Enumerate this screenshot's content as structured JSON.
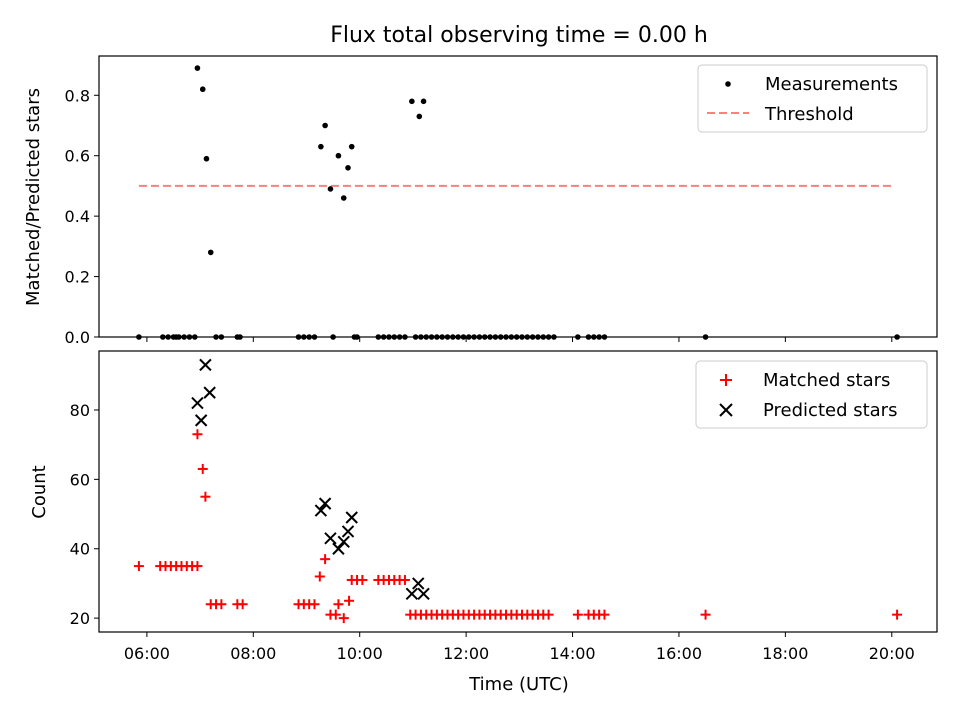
{
  "title": "Flux total observing time = 0.00 h",
  "colors": {
    "measurements": "#000000",
    "threshold": "#ff7f7f",
    "matched": "#ff0000",
    "predicted": "#000000"
  },
  "chart_data": [
    {
      "type": "scatter",
      "title": "Flux total observing time = 0.00 h",
      "xlabel": "",
      "ylabel": "Matched/Predicted stars",
      "xlim": [
        5.1,
        20.85
      ],
      "ylim": [
        0,
        0.93
      ],
      "yticks": [
        "0.0",
        "0.2",
        "0.4",
        "0.6",
        "0.8"
      ],
      "legend": {
        "position": "top-right",
        "entries": [
          "Measurements",
          "Threshold"
        ]
      },
      "threshold": {
        "name": "Threshold",
        "x": [
          5.85,
          20.05
        ],
        "y": 0.5
      },
      "series": [
        {
          "name": "Measurements",
          "points": [
            [
              5.85,
              0
            ],
            [
              6.3,
              0
            ],
            [
              6.4,
              0
            ],
            [
              6.5,
              0
            ],
            [
              6.55,
              0
            ],
            [
              6.6,
              0
            ],
            [
              6.7,
              0
            ],
            [
              6.8,
              0
            ],
            [
              6.9,
              0
            ],
            [
              7.3,
              0
            ],
            [
              7.4,
              0
            ],
            [
              7.7,
              0
            ],
            [
              7.75,
              0
            ],
            [
              8.85,
              0
            ],
            [
              8.95,
              0
            ],
            [
              9.05,
              0
            ],
            [
              9.15,
              0
            ],
            [
              9.5,
              0
            ],
            [
              9.9,
              0
            ],
            [
              9.95,
              0
            ],
            [
              10.35,
              0
            ],
            [
              10.45,
              0
            ],
            [
              10.55,
              0
            ],
            [
              10.65,
              0
            ],
            [
              10.75,
              0
            ],
            [
              10.85,
              0
            ],
            [
              11.05,
              0
            ],
            [
              11.15,
              0
            ],
            [
              11.25,
              0
            ],
            [
              11.35,
              0
            ],
            [
              11.45,
              0
            ],
            [
              11.55,
              0
            ],
            [
              11.65,
              0
            ],
            [
              11.75,
              0
            ],
            [
              11.85,
              0
            ],
            [
              11.95,
              0
            ],
            [
              12.05,
              0
            ],
            [
              12.15,
              0
            ],
            [
              12.25,
              0
            ],
            [
              12.35,
              0
            ],
            [
              12.45,
              0
            ],
            [
              12.55,
              0
            ],
            [
              12.65,
              0
            ],
            [
              12.75,
              0
            ],
            [
              12.85,
              0
            ],
            [
              12.95,
              0
            ],
            [
              13.05,
              0
            ],
            [
              13.15,
              0
            ],
            [
              13.25,
              0
            ],
            [
              13.35,
              0
            ],
            [
              13.45,
              0
            ],
            [
              13.55,
              0
            ],
            [
              13.65,
              0
            ],
            [
              14.1,
              0
            ],
            [
              14.3,
              0
            ],
            [
              14.4,
              0
            ],
            [
              14.5,
              0
            ],
            [
              14.6,
              0
            ],
            [
              16.5,
              0
            ],
            [
              20.1,
              0
            ],
            [
              6.95,
              0.89
            ],
            [
              7.05,
              0.82
            ],
            [
              7.12,
              0.59
            ],
            [
              7.2,
              0.28
            ],
            [
              9.27,
              0.63
            ],
            [
              9.35,
              0.7
            ],
            [
              9.45,
              0.49
            ],
            [
              9.6,
              0.6
            ],
            [
              9.7,
              0.46
            ],
            [
              9.78,
              0.56
            ],
            [
              9.85,
              0.63
            ],
            [
              10.98,
              0.78
            ],
            [
              11.12,
              0.73
            ],
            [
              11.2,
              0.78
            ]
          ]
        }
      ]
    },
    {
      "type": "scatter",
      "title": "",
      "xlabel": "Time (UTC)",
      "ylabel": "Count",
      "xlim": [
        5.1,
        20.85
      ],
      "ylim": [
        16,
        97
      ],
      "yticks": [
        "20",
        "40",
        "60",
        "80"
      ],
      "xticks": [
        "06:00",
        "08:00",
        "10:00",
        "12:00",
        "14:00",
        "16:00",
        "18:00",
        "20:00"
      ],
      "legend": {
        "position": "top-right",
        "entries": [
          "Matched stars",
          "Predicted stars"
        ]
      },
      "series": [
        {
          "name": "Matched stars",
          "marker": "plus",
          "points": [
            [
              5.85,
              35
            ],
            [
              6.25,
              35
            ],
            [
              6.35,
              35
            ],
            [
              6.45,
              35
            ],
            [
              6.55,
              35
            ],
            [
              6.65,
              35
            ],
            [
              6.75,
              35
            ],
            [
              6.85,
              35
            ],
            [
              6.95,
              35
            ],
            [
              6.95,
              73
            ],
            [
              7.05,
              63
            ],
            [
              7.1,
              55
            ],
            [
              7.2,
              24
            ],
            [
              7.3,
              24
            ],
            [
              7.4,
              24
            ],
            [
              7.7,
              24
            ],
            [
              7.8,
              24
            ],
            [
              8.85,
              24
            ],
            [
              8.95,
              24
            ],
            [
              9.05,
              24
            ],
            [
              9.15,
              24
            ],
            [
              9.25,
              32
            ],
            [
              9.35,
              37
            ],
            [
              9.45,
              21
            ],
            [
              9.55,
              21
            ],
            [
              9.6,
              24
            ],
            [
              9.7,
              20
            ],
            [
              9.8,
              25
            ],
            [
              9.85,
              31
            ],
            [
              9.95,
              31
            ],
            [
              10.05,
              31
            ],
            [
              10.35,
              31
            ],
            [
              10.45,
              31
            ],
            [
              10.55,
              31
            ],
            [
              10.65,
              31
            ],
            [
              10.75,
              31
            ],
            [
              10.85,
              31
            ],
            [
              10.95,
              21
            ],
            [
              11.05,
              21
            ],
            [
              11.15,
              21
            ],
            [
              11.25,
              21
            ],
            [
              11.35,
              21
            ],
            [
              11.45,
              21
            ],
            [
              11.55,
              21
            ],
            [
              11.65,
              21
            ],
            [
              11.75,
              21
            ],
            [
              11.85,
              21
            ],
            [
              11.95,
              21
            ],
            [
              12.05,
              21
            ],
            [
              12.15,
              21
            ],
            [
              12.25,
              21
            ],
            [
              12.35,
              21
            ],
            [
              12.45,
              21
            ],
            [
              12.55,
              21
            ],
            [
              12.65,
              21
            ],
            [
              12.75,
              21
            ],
            [
              12.85,
              21
            ],
            [
              12.95,
              21
            ],
            [
              13.05,
              21
            ],
            [
              13.15,
              21
            ],
            [
              13.25,
              21
            ],
            [
              13.35,
              21
            ],
            [
              13.45,
              21
            ],
            [
              13.55,
              21
            ],
            [
              14.1,
              21
            ],
            [
              14.3,
              21
            ],
            [
              14.4,
              21
            ],
            [
              14.5,
              21
            ],
            [
              14.6,
              21
            ],
            [
              16.5,
              21
            ],
            [
              20.1,
              21
            ]
          ]
        },
        {
          "name": "Predicted stars",
          "marker": "x",
          "points": [
            [
              6.95,
              82
            ],
            [
              7.02,
              77
            ],
            [
              7.1,
              93
            ],
            [
              7.18,
              85
            ],
            [
              9.27,
              51
            ],
            [
              9.35,
              53
            ],
            [
              9.45,
              43
            ],
            [
              9.6,
              40
            ],
            [
              9.7,
              42
            ],
            [
              9.78,
              45
            ],
            [
              9.85,
              49
            ],
            [
              10.98,
              27
            ],
            [
              11.1,
              30
            ],
            [
              11.2,
              27
            ]
          ]
        }
      ]
    }
  ]
}
